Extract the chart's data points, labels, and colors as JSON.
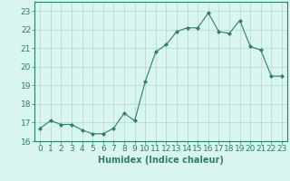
{
  "x": [
    0,
    1,
    2,
    3,
    4,
    5,
    6,
    7,
    8,
    9,
    10,
    11,
    12,
    13,
    14,
    15,
    16,
    17,
    18,
    19,
    20,
    21,
    22,
    23
  ],
  "y": [
    16.7,
    17.1,
    16.9,
    16.9,
    16.6,
    16.4,
    16.4,
    16.7,
    17.5,
    17.1,
    19.2,
    20.8,
    21.2,
    21.9,
    22.1,
    22.1,
    22.9,
    21.9,
    21.8,
    22.5,
    21.1,
    20.9,
    19.5,
    19.5
  ],
  "line_color": "#2e7d6e",
  "marker": "D",
  "marker_size": 2,
  "bg_color": "#d8f5f0",
  "grid_color": "#b8d4cf",
  "xlabel": "Humidex (Indice chaleur)",
  "xlim": [
    -0.5,
    23.5
  ],
  "ylim": [
    16.0,
    23.5
  ],
  "yticks": [
    16,
    17,
    18,
    19,
    20,
    21,
    22,
    23
  ],
  "xticks": [
    0,
    1,
    2,
    3,
    4,
    5,
    6,
    7,
    8,
    9,
    10,
    11,
    12,
    13,
    14,
    15,
    16,
    17,
    18,
    19,
    20,
    21,
    22,
    23
  ],
  "xlabel_fontsize": 7,
  "tick_fontsize": 6.5
}
